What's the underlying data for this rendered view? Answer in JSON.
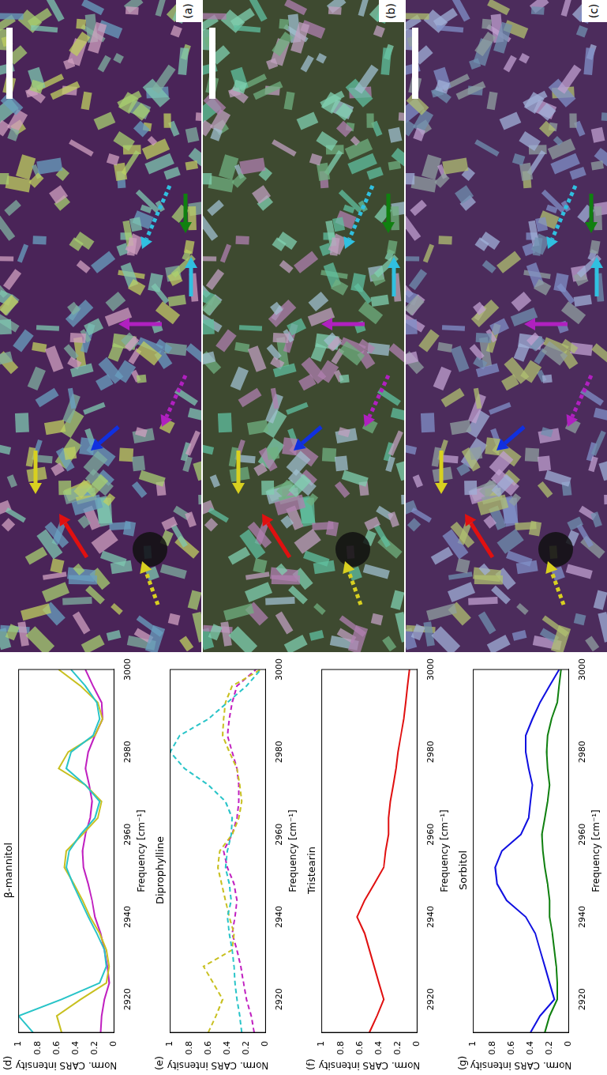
{
  "images": [
    {
      "label": "(a)"
    },
    {
      "label": "(b)"
    },
    {
      "label": "(c)"
    }
  ],
  "chart_data": [
    {
      "type": "line",
      "panel": "(d)",
      "title": "β-mannitol",
      "x_label": "Frequency [cm⁻¹]",
      "y_label": "Norm. CARS intensity",
      "x": [
        2912,
        2916,
        2920,
        2924,
        2928,
        2932,
        2936,
        2940,
        2944,
        2948,
        2952,
        2956,
        2960,
        2964,
        2968,
        2972,
        2976,
        2980,
        2984,
        2988,
        2992,
        2996,
        3000
      ],
      "series": [
        {
          "color": "#29c4c8",
          "line_style": "solid",
          "values": [
            0.85,
            1.0,
            0.55,
            0.15,
            0.08,
            0.1,
            0.18,
            0.27,
            0.35,
            0.43,
            0.5,
            0.47,
            0.35,
            0.2,
            0.15,
            0.3,
            0.5,
            0.45,
            0.22,
            0.15,
            0.18,
            0.3,
            0.45
          ]
        },
        {
          "color": "#c8c020",
          "line_style": "solid",
          "values": [
            0.55,
            0.6,
            0.35,
            0.08,
            0.05,
            0.08,
            0.15,
            0.25,
            0.33,
            0.42,
            0.52,
            0.5,
            0.33,
            0.17,
            0.13,
            0.3,
            0.58,
            0.48,
            0.2,
            0.12,
            0.17,
            0.35,
            0.58
          ]
        },
        {
          "color": "#c020c0",
          "line_style": "solid",
          "values": [
            0.14,
            0.13,
            0.1,
            0.05,
            0.07,
            0.1,
            0.14,
            0.2,
            0.23,
            0.27,
            0.32,
            0.33,
            0.3,
            0.25,
            0.23,
            0.26,
            0.3,
            0.27,
            0.2,
            0.12,
            0.13,
            0.22,
            0.3
          ]
        }
      ],
      "xlim": [
        2912,
        3000
      ],
      "xticks": [
        2920,
        2940,
        2960,
        2980,
        3000
      ],
      "ylim": [
        0,
        1
      ],
      "yticks": [
        0,
        0.2,
        0.4,
        0.6,
        0.8,
        1
      ],
      "grid": false
    },
    {
      "type": "line",
      "panel": "(e)",
      "title": "Diprophylline",
      "x_label": "Frequency [cm⁻¹]",
      "y_label": "Norm. CARS intensity",
      "x": [
        2912,
        2916,
        2920,
        2924,
        2928,
        2932,
        2936,
        2940,
        2944,
        2948,
        2952,
        2956,
        2960,
        2964,
        2968,
        2972,
        2976,
        2980,
        2984,
        2988,
        2992,
        2996,
        3000
      ],
      "series": [
        {
          "color": "#29c4c8",
          "line_style": "dashed",
          "values": [
            0.25,
            0.27,
            0.3,
            0.32,
            0.33,
            0.35,
            0.38,
            0.4,
            0.36,
            0.38,
            0.42,
            0.4,
            0.36,
            0.35,
            0.42,
            0.6,
            0.85,
            1.0,
            0.9,
            0.6,
            0.4,
            0.2,
            0.05
          ]
        },
        {
          "color": "#c8c020",
          "line_style": "dashed",
          "values": [
            0.6,
            0.52,
            0.45,
            0.55,
            0.65,
            0.35,
            0.33,
            0.38,
            0.42,
            0.46,
            0.5,
            0.48,
            0.35,
            0.28,
            0.25,
            0.27,
            0.3,
            0.38,
            0.45,
            0.44,
            0.42,
            0.35,
            0.05
          ]
        },
        {
          "color": "#c020c0",
          "line_style": "dashed",
          "values": [
            0.12,
            0.15,
            0.2,
            0.23,
            0.26,
            0.3,
            0.35,
            0.32,
            0.3,
            0.33,
            0.4,
            0.44,
            0.35,
            0.3,
            0.28,
            0.28,
            0.3,
            0.35,
            0.4,
            0.38,
            0.35,
            0.3,
            0.1
          ]
        }
      ],
      "xlim": [
        2912,
        3000
      ],
      "xticks": [
        2920,
        2940,
        2960,
        2980,
        3000
      ],
      "ylim": [
        0,
        1
      ],
      "yticks": [
        0,
        0.2,
        0.4,
        0.6,
        0.8,
        1
      ],
      "grid": false
    },
    {
      "type": "line",
      "panel": "(f)",
      "title": "Tristearin",
      "x_label": "Frequency [cm⁻¹]",
      "y_label": "Norm. CARS intensity",
      "x": [
        2912,
        2916,
        2920,
        2924,
        2928,
        2932,
        2936,
        2940,
        2944,
        2948,
        2952,
        2956,
        2960,
        2964,
        2968,
        2972,
        2976,
        2980,
        2984,
        2988,
        2992,
        2996,
        3000
      ],
      "series": [
        {
          "color": "#e01010",
          "line_style": "solid",
          "values": [
            0.5,
            0.42,
            0.35,
            0.4,
            0.45,
            0.5,
            0.55,
            0.63,
            0.55,
            0.45,
            0.35,
            0.33,
            0.3,
            0.3,
            0.28,
            0.25,
            0.22,
            0.2,
            0.17,
            0.14,
            0.12,
            0.1,
            0.08
          ]
        }
      ],
      "xlim": [
        2912,
        3000
      ],
      "xticks": [
        2920,
        2940,
        2960,
        2980,
        3000
      ],
      "ylim": [
        0,
        1
      ],
      "yticks": [
        0,
        0.2,
        0.4,
        0.6,
        0.8,
        1
      ],
      "grid": false
    },
    {
      "type": "line",
      "panel": "(g)",
      "title": "Sorbitol",
      "x_label": "Frequency [cm⁻¹]",
      "y_label": "Norm. CARS intensity",
      "x": [
        2912,
        2916,
        2920,
        2924,
        2928,
        2932,
        2936,
        2940,
        2944,
        2948,
        2952,
        2956,
        2960,
        2964,
        2968,
        2972,
        2976,
        2980,
        2984,
        2988,
        2992,
        2996,
        3000
      ],
      "series": [
        {
          "color": "#1010e0",
          "line_style": "solid",
          "values": [
            0.4,
            0.3,
            0.15,
            0.2,
            0.25,
            0.3,
            0.35,
            0.45,
            0.65,
            0.75,
            0.77,
            0.7,
            0.5,
            0.42,
            0.4,
            0.38,
            0.42,
            0.45,
            0.45,
            0.38,
            0.3,
            0.2,
            0.1
          ]
        },
        {
          "color": "#108010",
          "line_style": "solid",
          "values": [
            0.25,
            0.2,
            0.12,
            0.12,
            0.13,
            0.15,
            0.17,
            0.2,
            0.2,
            0.22,
            0.25,
            0.27,
            0.28,
            0.25,
            0.22,
            0.2,
            0.22,
            0.23,
            0.22,
            0.18,
            0.12,
            0.1,
            0.08
          ]
        }
      ],
      "xlim": [
        2912,
        3000
      ],
      "xticks": [
        2920,
        2940,
        2960,
        2980,
        3000
      ],
      "ylim": [
        0,
        1
      ],
      "yticks": [
        0,
        0.2,
        0.4,
        0.6,
        0.8,
        1
      ],
      "grid": false
    }
  ]
}
